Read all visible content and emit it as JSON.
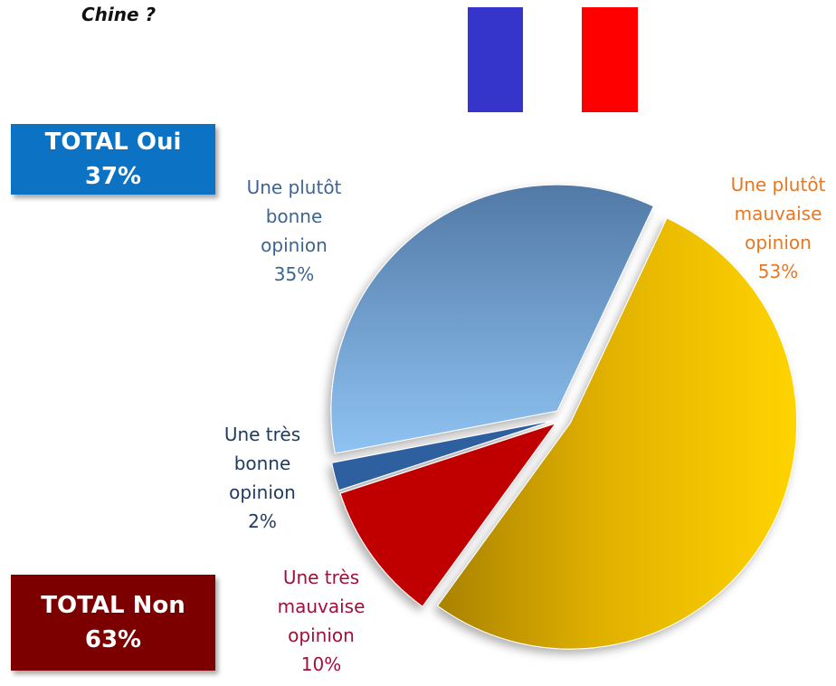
{
  "title": "Chine ?",
  "annotations": [
    {
      "text": "TOTAL Oui",
      "total": "37%",
      "color": "#0b72c4"
    },
    {
      "text": "TOTAL Non",
      "total": "63%",
      "color": "#7d0000"
    }
  ],
  "chart_data": {
    "type": "pie",
    "categories": [
      "Une très bonne opinion",
      "Une plutôt bonne opinion",
      "Une plutôt mauvaise opinion",
      "Une très mauvaise opinion"
    ],
    "values": [
      2,
      35,
      53,
      10
    ],
    "value_labels": [
      "2%",
      "35%",
      "53%",
      "10%"
    ],
    "colors": [
      "#2f5f9f",
      "#7fb3e6",
      "#e6b400",
      "#c00000"
    ],
    "label_colors": [
      "#1f3a5f",
      "#3d6592",
      "#e87722",
      "#a0103a"
    ]
  }
}
